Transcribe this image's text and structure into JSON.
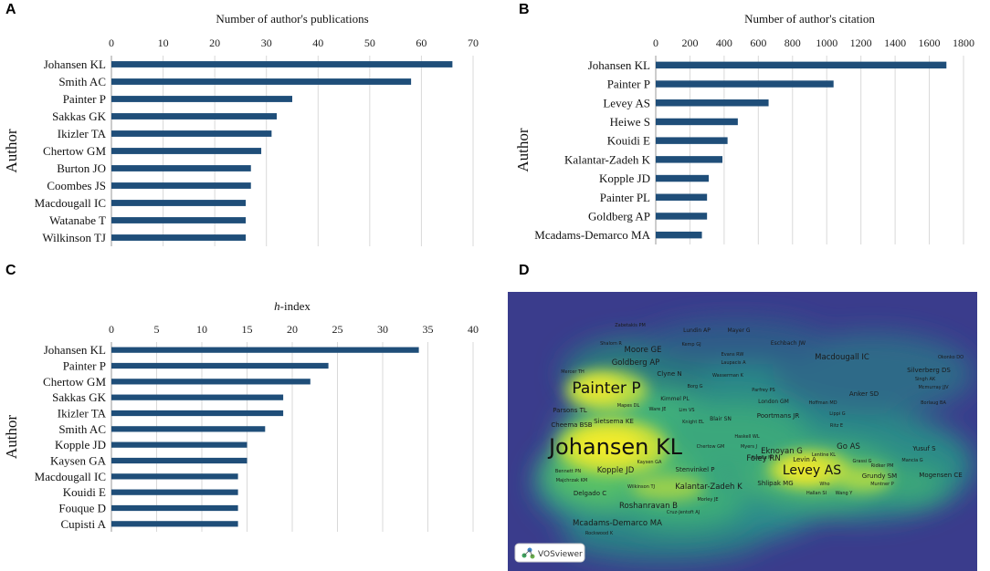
{
  "chart_data": [
    {
      "panel": "A",
      "type": "bar",
      "orientation": "horizontal",
      "title": "Number of author's publications",
      "ylabel": "Author",
      "xlim": [
        0,
        70
      ],
      "ticks": [
        0,
        10,
        20,
        30,
        40,
        50,
        60,
        70
      ],
      "categories": [
        "Johansen KL",
        "Smith AC",
        "Painter P",
        "Sakkas GK",
        "Ikizler TA",
        "Chertow GM",
        "Burton JO",
        "Coombes JS",
        "Macdougall IC",
        "Watanabe T",
        "Wilkinson TJ"
      ],
      "values": [
        66,
        58,
        35,
        32,
        31,
        29,
        27,
        27,
        26,
        26,
        26
      ]
    },
    {
      "panel": "B",
      "type": "bar",
      "orientation": "horizontal",
      "title": "Number of author's citation",
      "ylabel": "Author",
      "xlim": [
        0,
        1800
      ],
      "ticks": [
        0,
        200,
        400,
        600,
        800,
        1000,
        1200,
        1400,
        1600,
        1800
      ],
      "categories": [
        "Johansen KL",
        "Painter P",
        "Levey AS",
        "Heiwe S",
        "Kouidi E",
        "Kalantar-Zadeh K",
        "Kopple JD",
        "Painter PL",
        "Goldberg AP",
        "Mcadams-Demarco MA"
      ],
      "values": [
        1700,
        1040,
        660,
        480,
        420,
        390,
        310,
        300,
        300,
        270
      ]
    },
    {
      "panel": "C",
      "type": "bar",
      "orientation": "horizontal",
      "title_italic": "h",
      "title_rest": "-index",
      "ylabel": "Author",
      "xlim": [
        0,
        40
      ],
      "ticks": [
        0,
        5,
        10,
        15,
        20,
        25,
        30,
        35,
        40
      ],
      "categories": [
        "Johansen KL",
        "Painter P",
        "Chertow GM",
        "Sakkas GK",
        "Ikizler TA",
        "Smith AC",
        "Kopple JD",
        "Kaysen GA",
        "Macdougall IC",
        "Kouidi E",
        "Fouque D",
        "Cupisti A"
      ],
      "values": [
        34,
        24,
        22,
        19,
        19,
        17,
        15,
        15,
        14,
        14,
        14,
        14
      ]
    }
  ],
  "panel_labels": {
    "a": "A",
    "b": "B",
    "c": "C",
    "d": "D"
  },
  "network": {
    "watermark": "VOSviewer",
    "colors": {
      "bg": "#3b3d8c",
      "bar": "#1f4e79"
    },
    "labels": [
      {
        "text": "Johansen KL",
        "size": 6
      },
      {
        "text": "Painter P",
        "size": 5
      },
      {
        "text": "Levey AS",
        "size": 4
      },
      {
        "text": "Kalantar-Zadeh K",
        "size": 3
      },
      {
        "text": "Roshanravan B",
        "size": 3
      },
      {
        "text": "Mcadams-Demarco MA",
        "size": 3
      },
      {
        "text": "Macdougall IC",
        "size": 3
      },
      {
        "text": "Goldberg AP",
        "size": 3
      },
      {
        "text": "Moore GE",
        "size": 3
      },
      {
        "text": "Foley RN",
        "size": 3
      },
      {
        "text": "Poortmans JR",
        "size": 2
      },
      {
        "text": "Kopple JD",
        "size": 3
      },
      {
        "text": "Eknoyan G",
        "size": 3
      },
      {
        "text": "Go AS",
        "size": 3
      },
      {
        "text": "Yusuf S",
        "size": 2
      },
      {
        "text": "Mogensen CE",
        "size": 2
      },
      {
        "text": "Silverberg DS",
        "size": 2
      },
      {
        "text": "Anker SD",
        "size": 2
      },
      {
        "text": "Sietsema KE",
        "size": 2
      },
      {
        "text": "Cheema BSB",
        "size": 2
      },
      {
        "text": "Parsons TL",
        "size": 2
      },
      {
        "text": "Levin A",
        "size": 2
      },
      {
        "text": "Shlipak MG",
        "size": 2
      },
      {
        "text": "Stenvinkel P",
        "size": 2
      },
      {
        "text": "Clyne N",
        "size": 2
      },
      {
        "text": "Delgado C",
        "size": 2
      },
      {
        "text": "Grundy SM",
        "size": 2
      },
      {
        "text": "London GM",
        "size": 1
      },
      {
        "text": "Blair SN",
        "size": 1
      },
      {
        "text": "Kimmel PL",
        "size": 1
      },
      {
        "text": "Eschbach JW",
        "size": 1
      },
      {
        "text": "Lundin AP",
        "size": 1
      },
      {
        "text": "Mayer G",
        "size": 1
      },
      {
        "text": "Zabetakis PM",
        "size": 0
      },
      {
        "text": "Shalom R",
        "size": 0
      },
      {
        "text": "Kemp GJ",
        "size": 0
      },
      {
        "text": "Evans RW",
        "size": 0
      },
      {
        "text": "Laupacis A",
        "size": 0
      },
      {
        "text": "Mercer TH",
        "size": 0
      },
      {
        "text": "Wasserman K",
        "size": 0
      },
      {
        "text": "Okonko DO",
        "size": 0
      },
      {
        "text": "Singh AK",
        "size": 0
      },
      {
        "text": "Mcmurray JJV",
        "size": 0
      },
      {
        "text": "Borg G",
        "size": 0
      },
      {
        "text": "Parfrey PS",
        "size": 0
      },
      {
        "text": "Hoffman MD",
        "size": 0
      },
      {
        "text": "Borlaug BA",
        "size": 0
      },
      {
        "text": "Mapes DL",
        "size": 0
      },
      {
        "text": "Ware JE",
        "size": 0
      },
      {
        "text": "Lim VS",
        "size": 0
      },
      {
        "text": "Knight EL",
        "size": 0
      },
      {
        "text": "Lippi G",
        "size": 0
      },
      {
        "text": "Ritz E",
        "size": 0
      },
      {
        "text": "Haskell WL",
        "size": 0
      },
      {
        "text": "Chertow GM",
        "size": 0
      },
      {
        "text": "Myers J",
        "size": 0
      },
      {
        "text": "Kurella M",
        "size": 0
      },
      {
        "text": "Lentine KL",
        "size": 0
      },
      {
        "text": "Grassi G",
        "size": 0
      },
      {
        "text": "Mancia G",
        "size": 0
      },
      {
        "text": "Ridker PM",
        "size": 0
      },
      {
        "text": "Muntner P",
        "size": 0
      },
      {
        "text": "Bennett PN",
        "size": 0
      },
      {
        "text": "Kaysen GA",
        "size": 0
      },
      {
        "text": "Majchrzak KM",
        "size": 0
      },
      {
        "text": "Wilkinson TJ",
        "size": 0
      },
      {
        "text": "Who",
        "size": 0
      },
      {
        "text": "Hallan SI",
        "size": 0
      },
      {
        "text": "Wang Y",
        "size": 0
      },
      {
        "text": "Morley JE",
        "size": 0
      },
      {
        "text": "Cruz-Jentoft AJ",
        "size": 0
      },
      {
        "text": "Rockwood K",
        "size": 0
      }
    ]
  }
}
